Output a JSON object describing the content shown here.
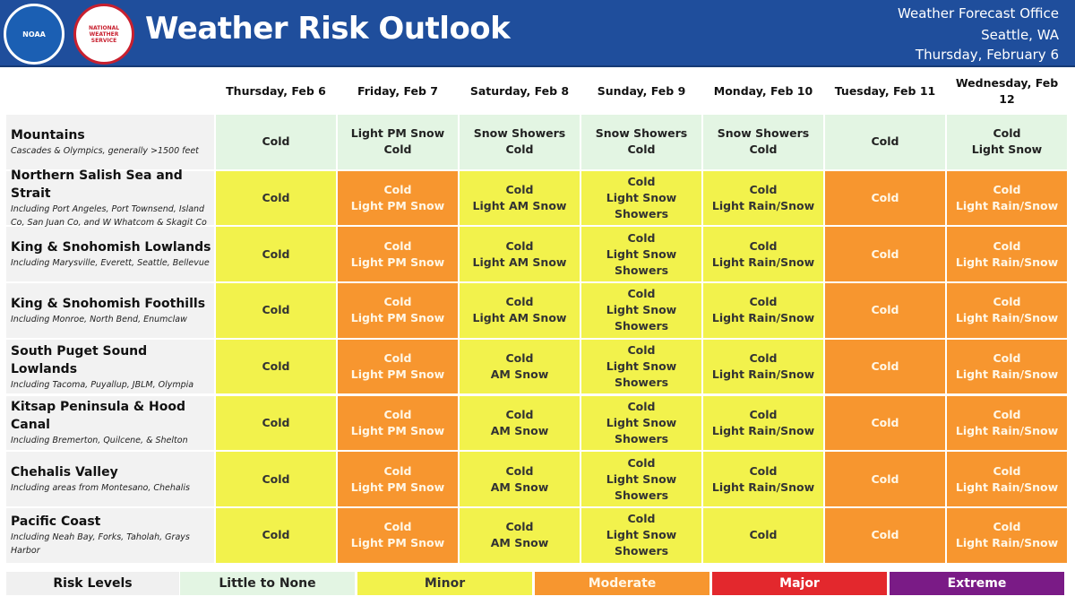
{
  "header": {
    "title": "Weather Risk Outlook",
    "logos": [
      "NOAA",
      "NATIONAL WEATHER SERVICE"
    ],
    "office": [
      "Weather Forecast Office",
      "Seattle, WA",
      "Thursday, February 6"
    ]
  },
  "table": {
    "days": [
      "Thursday, Feb 6",
      "Friday, Feb 7",
      "Saturday, Feb 8",
      "Sunday, Feb 9",
      "Monday, Feb 10",
      "Tuesday, Feb 11",
      "Wednesday, Feb 12"
    ],
    "rows": [
      {
        "name": "Mountains",
        "note": "Cascades & Olympics, generally >1500 feet",
        "cells": [
          {
            "risk": "Little to None",
            "lines": [
              "Cold"
            ]
          },
          {
            "risk": "Little to None",
            "lines": [
              "Light PM Snow",
              "Cold"
            ]
          },
          {
            "risk": "Little to None",
            "lines": [
              "Snow Showers",
              "Cold"
            ]
          },
          {
            "risk": "Little to None",
            "lines": [
              "Snow Showers",
              "Cold"
            ]
          },
          {
            "risk": "Little to None",
            "lines": [
              "Snow Showers",
              "Cold"
            ]
          },
          {
            "risk": "Little to None",
            "lines": [
              "Cold"
            ]
          },
          {
            "risk": "Little to None",
            "lines": [
              "Cold",
              "Light Snow"
            ]
          }
        ]
      },
      {
        "name": "Northern Salish Sea and Strait",
        "note": "Including Port Angeles, Port Townsend, Island Co, San Juan Co, and W Whatcom & Skagit Co",
        "cells": [
          {
            "risk": "Minor",
            "lines": [
              "Cold"
            ]
          },
          {
            "risk": "Moderate",
            "lines": [
              "Cold",
              "Light PM Snow"
            ]
          },
          {
            "risk": "Minor",
            "lines": [
              "Cold",
              "Light AM Snow"
            ]
          },
          {
            "risk": "Minor",
            "lines": [
              "Cold",
              "Light Snow Showers"
            ]
          },
          {
            "risk": "Minor",
            "lines": [
              "Cold",
              "Light Rain/Snow"
            ]
          },
          {
            "risk": "Moderate",
            "lines": [
              "Cold"
            ]
          },
          {
            "risk": "Moderate",
            "lines": [
              "Cold",
              "Light Rain/Snow"
            ]
          }
        ]
      },
      {
        "name": "King & Snohomish Lowlands",
        "note": "Including Marysville, Everett, Seattle, Bellevue",
        "cells": [
          {
            "risk": "Minor",
            "lines": [
              "Cold"
            ]
          },
          {
            "risk": "Moderate",
            "lines": [
              "Cold",
              "Light PM Snow"
            ]
          },
          {
            "risk": "Minor",
            "lines": [
              "Cold",
              "Light AM Snow"
            ]
          },
          {
            "risk": "Minor",
            "lines": [
              "Cold",
              "Light Snow Showers"
            ]
          },
          {
            "risk": "Minor",
            "lines": [
              "Cold",
              "Light Rain/Snow"
            ]
          },
          {
            "risk": "Moderate",
            "lines": [
              "Cold"
            ]
          },
          {
            "risk": "Moderate",
            "lines": [
              "Cold",
              "Light Rain/Snow"
            ]
          }
        ]
      },
      {
        "name": "King & Snohomish Foothills",
        "note": "Including Monroe, North Bend, Enumclaw",
        "cells": [
          {
            "risk": "Minor",
            "lines": [
              "Cold"
            ]
          },
          {
            "risk": "Moderate",
            "lines": [
              "Cold",
              "Light PM Snow"
            ]
          },
          {
            "risk": "Minor",
            "lines": [
              "Cold",
              "Light AM Snow"
            ]
          },
          {
            "risk": "Minor",
            "lines": [
              "Cold",
              "Light Snow Showers"
            ]
          },
          {
            "risk": "Minor",
            "lines": [
              "Cold",
              "Light Rain/Snow"
            ]
          },
          {
            "risk": "Moderate",
            "lines": [
              "Cold"
            ]
          },
          {
            "risk": "Moderate",
            "lines": [
              "Cold",
              "Light Rain/Snow"
            ]
          }
        ]
      },
      {
        "name": "South Puget Sound Lowlands",
        "note": "Including Tacoma, Puyallup, JBLM, Olympia",
        "cells": [
          {
            "risk": "Minor",
            "lines": [
              "Cold"
            ]
          },
          {
            "risk": "Moderate",
            "lines": [
              "Cold",
              "Light PM Snow"
            ]
          },
          {
            "risk": "Minor",
            "lines": [
              "Cold",
              "AM Snow"
            ]
          },
          {
            "risk": "Minor",
            "lines": [
              "Cold",
              "Light Snow Showers"
            ]
          },
          {
            "risk": "Minor",
            "lines": [
              "Cold",
              "Light Rain/Snow"
            ]
          },
          {
            "risk": "Moderate",
            "lines": [
              "Cold"
            ]
          },
          {
            "risk": "Moderate",
            "lines": [
              "Cold",
              "Light Rain/Snow"
            ]
          }
        ]
      },
      {
        "name": "Kitsap Peninsula & Hood Canal",
        "note": "Including Bremerton, Quilcene, & Shelton",
        "cells": [
          {
            "risk": "Minor",
            "lines": [
              "Cold"
            ]
          },
          {
            "risk": "Moderate",
            "lines": [
              "Cold",
              "Light PM Snow"
            ]
          },
          {
            "risk": "Minor",
            "lines": [
              "Cold",
              "AM Snow"
            ]
          },
          {
            "risk": "Minor",
            "lines": [
              "Cold",
              "Light Snow Showers"
            ]
          },
          {
            "risk": "Minor",
            "lines": [
              "Cold",
              "Light Rain/Snow"
            ]
          },
          {
            "risk": "Moderate",
            "lines": [
              "Cold"
            ]
          },
          {
            "risk": "Moderate",
            "lines": [
              "Cold",
              "Light Rain/Snow"
            ]
          }
        ]
      },
      {
        "name": "Chehalis Valley",
        "note": "Including areas from Montesano, Chehalis",
        "cells": [
          {
            "risk": "Minor",
            "lines": [
              "Cold"
            ]
          },
          {
            "risk": "Moderate",
            "lines": [
              "Cold",
              "Light PM Snow"
            ]
          },
          {
            "risk": "Minor",
            "lines": [
              "Cold",
              "AM Snow"
            ]
          },
          {
            "risk": "Minor",
            "lines": [
              "Cold",
              "Light Snow Showers"
            ]
          },
          {
            "risk": "Minor",
            "lines": [
              "Cold",
              "Light Rain/Snow"
            ]
          },
          {
            "risk": "Moderate",
            "lines": [
              "Cold"
            ]
          },
          {
            "risk": "Moderate",
            "lines": [
              "Cold",
              "Light Rain/Snow"
            ]
          }
        ]
      },
      {
        "name": "Pacific Coast",
        "note": "Including Neah Bay, Forks, Taholah, Grays Harbor",
        "cells": [
          {
            "risk": "Minor",
            "lines": [
              "Cold"
            ]
          },
          {
            "risk": "Moderate",
            "lines": [
              "Cold",
              "Light PM Snow"
            ]
          },
          {
            "risk": "Minor",
            "lines": [
              "Cold",
              "AM Snow"
            ]
          },
          {
            "risk": "Minor",
            "lines": [
              "Cold",
              "Light Snow Showers"
            ]
          },
          {
            "risk": "Minor",
            "lines": [
              "Cold"
            ]
          },
          {
            "risk": "Moderate",
            "lines": [
              "Cold"
            ]
          },
          {
            "risk": "Moderate",
            "lines": [
              "Cold",
              "Light Rain/Snow"
            ]
          }
        ]
      }
    ]
  },
  "legend": {
    "label": "Risk Levels",
    "levels": [
      {
        "name": "Little to None",
        "color": "#e3f5e3",
        "text_color": "#222222"
      },
      {
        "name": "Minor",
        "color": "#f2f24c",
        "text_color": "#333333"
      },
      {
        "name": "Moderate",
        "color": "#f7962f",
        "text_color": "#fff7e6"
      },
      {
        "name": "Major",
        "color": "#e3282d",
        "text_color": "#ffffff"
      },
      {
        "name": "Extreme",
        "color": "#7a1b86",
        "text_color": "#ffffff"
      }
    ]
  }
}
